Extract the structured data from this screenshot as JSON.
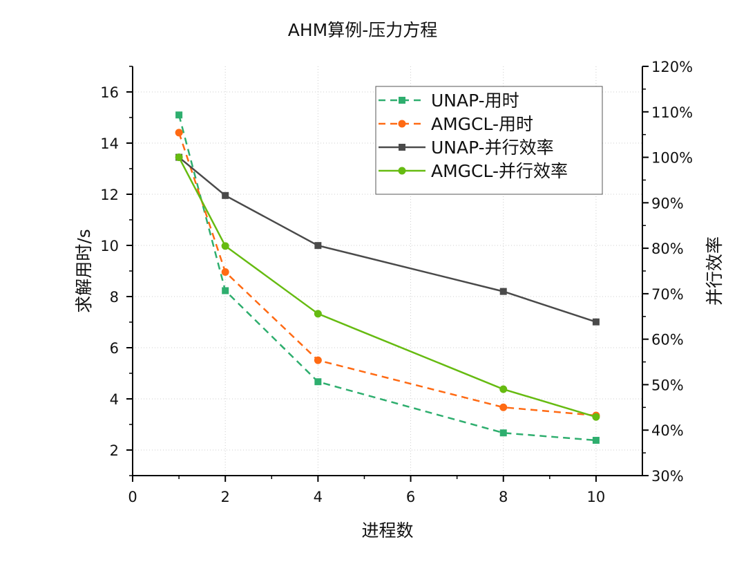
{
  "chart_data": {
    "type": "line",
    "title": "AHM算例-压力方程",
    "xlabel": "进程数",
    "ylabel": "求解用时/s",
    "y2label": "并行效率",
    "xlim": [
      0,
      11
    ],
    "ylim": [
      1,
      17
    ],
    "y2lim": [
      30,
      120
    ],
    "x_ticks": [
      0,
      2,
      4,
      6,
      8,
      10
    ],
    "y_ticks": [
      2,
      4,
      6,
      8,
      10,
      12,
      14,
      16
    ],
    "y2_ticks": [
      "30%",
      "40%",
      "50%",
      "60%",
      "70%",
      "80%",
      "90%",
      "100%",
      "110%",
      "120%"
    ],
    "y2_tick_values": [
      30,
      40,
      50,
      60,
      70,
      80,
      90,
      100,
      110,
      120
    ],
    "grid": true,
    "legend_position": "top-right",
    "x": [
      1,
      2,
      4,
      8,
      10
    ],
    "series": [
      {
        "name": "UNAP-用时",
        "axis": "left",
        "values": [
          15.1,
          8.23,
          4.67,
          2.67,
          2.38
        ],
        "color": "#2EAE6E",
        "dash": true,
        "marker": "square"
      },
      {
        "name": "AMGCL-用时",
        "axis": "left",
        "values": [
          14.41,
          8.96,
          5.51,
          3.67,
          3.35
        ],
        "color": "#FF6A13",
        "dash": true,
        "marker": "circle"
      },
      {
        "name": "UNAP-并行效率",
        "axis": "right",
        "values": [
          100,
          91.6,
          80.6,
          70.5,
          63.8
        ],
        "color": "#4A4A4A",
        "dash": false,
        "marker": "square"
      },
      {
        "name": "AMGCL-并行效率",
        "axis": "right",
        "values": [
          100,
          80.5,
          65.6,
          49.0,
          42.9
        ],
        "color": "#66BB11",
        "dash": false,
        "marker": "circle"
      }
    ]
  }
}
